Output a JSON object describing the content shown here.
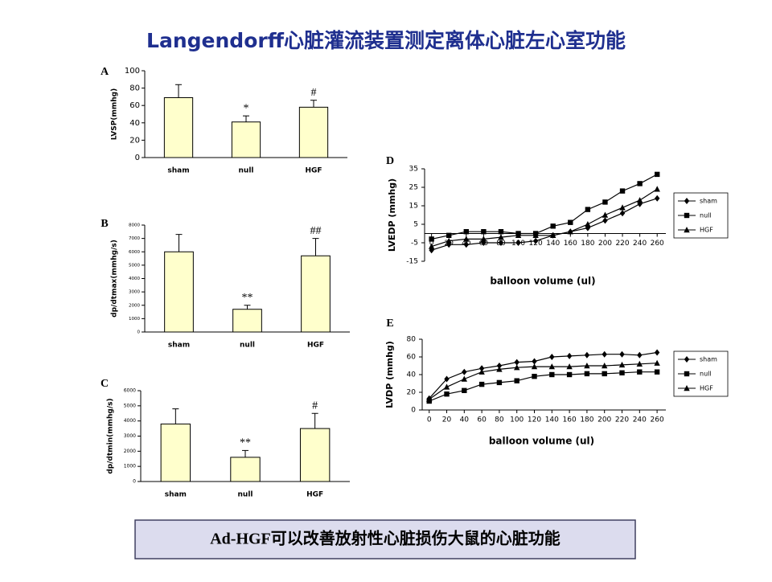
{
  "title": "Langendorff心脏灌流装置测定离体心脏左心室功能",
  "caption": "Ad-HGF可以改善放射性心脏损伤大鼠的心脏功能",
  "chart_data": [
    {
      "type": "bar",
      "panel": "A",
      "y_label": "LVSP(mmhg)",
      "categories": [
        "sham",
        "null",
        "HGF"
      ],
      "values": [
        69,
        41,
        58
      ],
      "errors": [
        15,
        7,
        8
      ],
      "annotations": [
        null,
        "*",
        "#"
      ],
      "color": "#ffffcc",
      "ylim": [
        0,
        100
      ],
      "yticks": [
        0,
        20,
        40,
        60,
        80,
        100
      ]
    },
    {
      "type": "bar",
      "panel": "B",
      "y_label": "dp/dtmax(mmhg/s)",
      "categories": [
        "sham",
        "null",
        "HGF"
      ],
      "values": [
        6000,
        1700,
        5700
      ],
      "errors": [
        1300,
        300,
        1300
      ],
      "annotations": [
        null,
        "**",
        "##"
      ],
      "color": "#ffffcc",
      "ylim": [
        0,
        8000
      ],
      "yticks": [
        0,
        1000,
        2000,
        3000,
        4000,
        5000,
        6000,
        7000,
        8000
      ]
    },
    {
      "type": "bar",
      "panel": "C",
      "y_label": "dp/dtmin(mmhg/s)",
      "categories": [
        "sham",
        "null",
        "HGF"
      ],
      "values": [
        3800,
        1600,
        3500
      ],
      "errors": [
        1000,
        450,
        1000
      ],
      "annotations": [
        null,
        "**",
        "#"
      ],
      "color": "#ffffcc",
      "ylim": [
        0,
        6000
      ],
      "yticks": [
        0,
        1000,
        2000,
        3000,
        4000,
        5000,
        6000
      ]
    },
    {
      "type": "line",
      "panel": "D",
      "y_label": "LVEDP (mmhg)",
      "x_label": "balloon volume (ul)",
      "x": [
        0,
        20,
        40,
        60,
        80,
        100,
        120,
        140,
        160,
        180,
        200,
        220,
        240,
        260
      ],
      "series": [
        {
          "name": "sham",
          "color": "#000000",
          "marker": "diamond",
          "values": [
            -9,
            -6,
            -6,
            -5,
            -5,
            -5,
            -4,
            -1,
            1,
            3,
            7,
            11,
            16,
            19
          ]
        },
        {
          "name": "null",
          "color": "#000000",
          "marker": "square",
          "values": [
            -3,
            -1,
            1,
            1,
            1,
            0,
            0,
            4,
            6,
            13,
            17,
            23,
            27,
            32
          ]
        },
        {
          "name": "HGF",
          "color": "#000000",
          "marker": "triangle",
          "values": [
            -7,
            -4,
            -3,
            -3,
            -2,
            -1,
            -1,
            -1,
            1,
            5,
            10,
            14,
            18,
            24
          ]
        }
      ],
      "xlim": [
        -8,
        270
      ],
      "xticks": [
        0,
        20,
        40,
        60,
        80,
        100,
        120,
        140,
        160,
        180,
        200,
        220,
        240,
        260
      ],
      "ylim": [
        -15,
        35
      ],
      "yticks": [
        -15,
        -5,
        5,
        15,
        25,
        35
      ],
      "legend": "right"
    },
    {
      "type": "line",
      "panel": "E",
      "y_label": "LVDP (mmhg)",
      "x_label": "balloon volume (ul)",
      "x": [
        0,
        20,
        40,
        60,
        80,
        100,
        120,
        140,
        160,
        180,
        200,
        220,
        240,
        260
      ],
      "series": [
        {
          "name": "sham",
          "color": "#000000",
          "marker": "diamond",
          "values": [
            13,
            35,
            43,
            47,
            50,
            54,
            55,
            60,
            61,
            62,
            63,
            63,
            62,
            65
          ]
        },
        {
          "name": "null",
          "color": "#000000",
          "marker": "square",
          "values": [
            10,
            18,
            22,
            29,
            31,
            33,
            38,
            40,
            40,
            41,
            41,
            42,
            43,
            43
          ]
        },
        {
          "name": "HGF",
          "color": "#000000",
          "marker": "triangle",
          "values": [
            12,
            26,
            35,
            43,
            46,
            48,
            49,
            49,
            49,
            50,
            50,
            51,
            52,
            53
          ]
        }
      ],
      "xlim": [
        -8,
        270
      ],
      "xticks": [
        0,
        20,
        40,
        60,
        80,
        100,
        120,
        140,
        160,
        180,
        200,
        220,
        240,
        260
      ],
      "ylim": [
        0,
        80
      ],
      "yticks": [
        0,
        20,
        40,
        60,
        80
      ],
      "legend": "right"
    }
  ]
}
